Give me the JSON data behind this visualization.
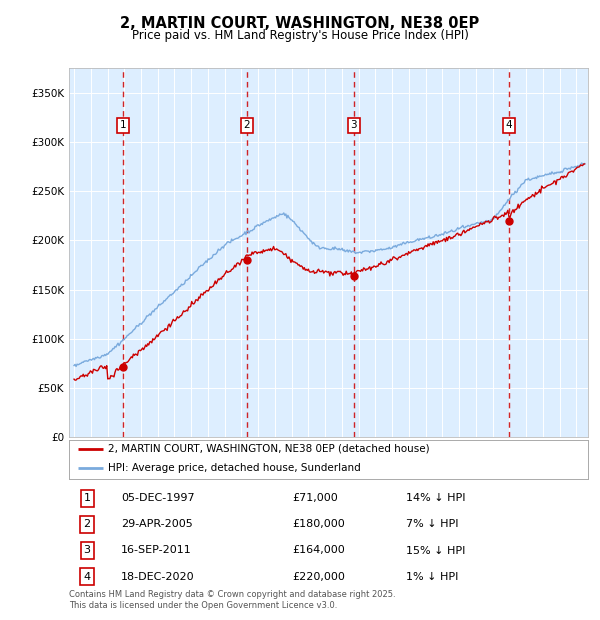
{
  "title": "2, MARTIN COURT, WASHINGTON, NE38 0EP",
  "subtitle": "Price paid vs. HM Land Registry's House Price Index (HPI)",
  "ylabel_ticks": [
    "£0",
    "£50K",
    "£100K",
    "£150K",
    "£200K",
    "£250K",
    "£300K",
    "£350K"
  ],
  "ytick_values": [
    0,
    50000,
    100000,
    150000,
    200000,
    250000,
    300000,
    350000
  ],
  "ylim": [
    0,
    375000
  ],
  "xlim_start": 1994.7,
  "xlim_end": 2025.7,
  "sale_dates": [
    1997.92,
    2005.33,
    2011.71,
    2020.96
  ],
  "sale_prices": [
    71000,
    180000,
    164000,
    220000
  ],
  "sale_labels": [
    "1",
    "2",
    "3",
    "4"
  ],
  "legend_property": "2, MARTIN COURT, WASHINGTON, NE38 0EP (detached house)",
  "legend_hpi": "HPI: Average price, detached house, Sunderland",
  "table_rows": [
    [
      "1",
      "05-DEC-1997",
      "£71,000",
      "14% ↓ HPI"
    ],
    [
      "2",
      "29-APR-2005",
      "£180,000",
      "7% ↓ HPI"
    ],
    [
      "3",
      "16-SEP-2011",
      "£164,000",
      "15% ↓ HPI"
    ],
    [
      "4",
      "18-DEC-2020",
      "£220,000",
      "1% ↓ HPI"
    ]
  ],
  "footer": "Contains HM Land Registry data © Crown copyright and database right 2025.\nThis data is licensed under the Open Government Licence v3.0.",
  "property_color": "#cc0000",
  "hpi_color": "#7aaadd",
  "background_color": "#ddeeff",
  "grid_color": "#ffffff",
  "dashed_line_color": "#cc0000"
}
